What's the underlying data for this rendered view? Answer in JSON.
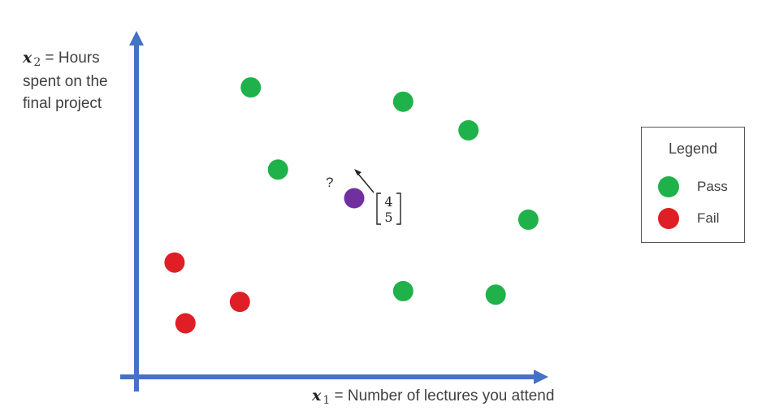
{
  "y_axis_label": {
    "variable": "x",
    "subscript": "2",
    "equals": "=",
    "line1_rest": "Hours",
    "line2": "spent on the",
    "line3": "final project"
  },
  "x_axis_label": {
    "variable": "x",
    "subscript": "1",
    "equals": "=",
    "text": "Number of lectures you attend"
  },
  "legend": {
    "title": "Legend",
    "items": [
      {
        "label": "Pass",
        "color": "#1fb24a"
      },
      {
        "label": "Fail",
        "color": "#e01e25"
      }
    ]
  },
  "axis_color": "#4472c4",
  "query_point": {
    "label": "?",
    "vector": [
      "4",
      "5"
    ],
    "color": "#7030a0"
  },
  "chart_data": {
    "type": "scatter",
    "xlabel": "x1 = Number of lectures you attend",
    "ylabel": "x2 = Hours spent on the final project",
    "series": [
      {
        "name": "Pass",
        "color": "#1fb24a",
        "points": [
          [
            2.1,
            8.1
          ],
          [
            2.6,
            5.8
          ],
          [
            4.9,
            7.7
          ],
          [
            6.1,
            6.9
          ],
          [
            7.2,
            4.4
          ],
          [
            4.9,
            2.4
          ],
          [
            6.6,
            2.3
          ]
        ]
      },
      {
        "name": "Fail",
        "color": "#e01e25",
        "points": [
          [
            0.7,
            3.2
          ],
          [
            0.9,
            1.5
          ],
          [
            1.9,
            2.1
          ]
        ]
      },
      {
        "name": "?",
        "color": "#7030a0",
        "points": [
          [
            4,
            5
          ]
        ]
      }
    ]
  }
}
